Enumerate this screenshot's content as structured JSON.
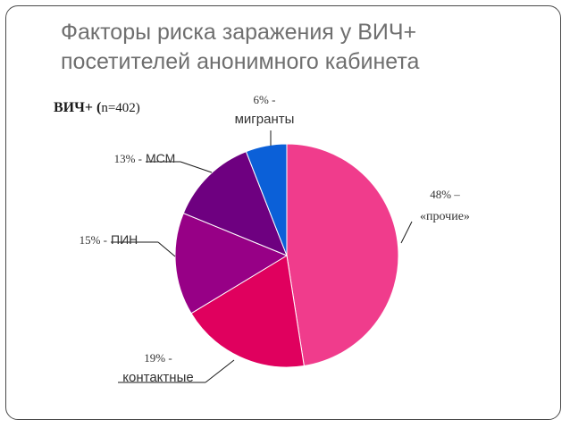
{
  "title_line1": "Факторы риска заражения у ВИЧ+",
  "title_line2": "посетителей анонимного кабинета",
  "subtitle": {
    "part1": "ВИЧ+ (",
    "part2": "n=402)"
  },
  "chart_data": {
    "type": "pie",
    "start": "12 o'clock, clockwise",
    "slices": [
      {
        "pct_label": "48% –",
        "name_label": "«прочие»",
        "value": 48,
        "color": "#f03c8c"
      },
      {
        "pct_label": "19% -",
        "name_label": "контактные",
        "value": 19,
        "color": "#e0005e"
      },
      {
        "pct_label": "15% -",
        "name_label": "ПИН",
        "value": 15,
        "color": "#970086"
      },
      {
        "pct_label": "13% -",
        "name_label": "МСМ",
        "value": 13,
        "color": "#6e0080"
      },
      {
        "pct_label": "6% -",
        "name_label": "мигранты",
        "value": 6,
        "color": "#0b60d8"
      }
    ]
  }
}
